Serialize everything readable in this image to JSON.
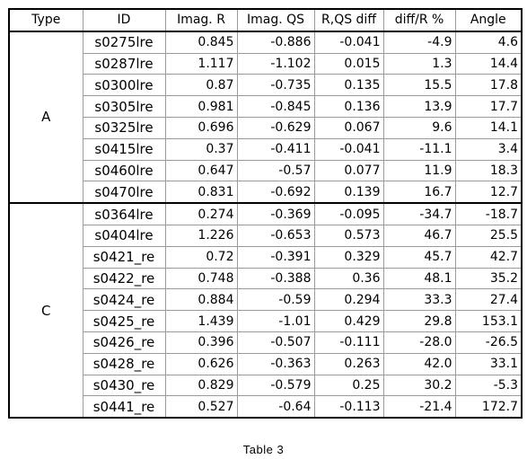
{
  "table": {
    "headers": [
      "Type",
      "ID",
      "Imag. R",
      "Imag. QS",
      "R,QS diff",
      "diff/R %",
      "Angle"
    ],
    "groups": [
      {
        "type": "A",
        "rows": [
          [
            "s0275lre",
            "0.845",
            "-0.886",
            "-0.041",
            "-4.9",
            "4.6"
          ],
          [
            "s0287lre",
            "1.117",
            "-1.102",
            "0.015",
            "1.3",
            "14.4"
          ],
          [
            "s0300lre",
            "0.87",
            "-0.735",
            "0.135",
            "15.5",
            "17.8"
          ],
          [
            "s0305lre",
            "0.981",
            "-0.845",
            "0.136",
            "13.9",
            "17.7"
          ],
          [
            "s0325lre",
            "0.696",
            "-0.629",
            "0.067",
            "9.6",
            "14.1"
          ],
          [
            "s0415lre",
            "0.37",
            "-0.411",
            "-0.041",
            "-11.1",
            "3.4"
          ],
          [
            "s0460lre",
            "0.647",
            "-0.57",
            "0.077",
            "11.9",
            "18.3"
          ],
          [
            "s0470lre",
            "0.831",
            "-0.692",
            "0.139",
            "16.7",
            "12.7"
          ]
        ]
      },
      {
        "type": "C",
        "rows": [
          [
            "s0364lre",
            "0.274",
            "-0.369",
            "-0.095",
            "-34.7",
            "-18.7"
          ],
          [
            "s0404lre",
            "1.226",
            "-0.653",
            "0.573",
            "46.7",
            "25.5"
          ],
          [
            "s0421_re",
            "0.72",
            "-0.391",
            "0.329",
            "45.7",
            "42.7"
          ],
          [
            "s0422_re",
            "0.748",
            "-0.388",
            "0.36",
            "48.1",
            "35.2"
          ],
          [
            "s0424_re",
            "0.884",
            "-0.59",
            "0.294",
            "33.3",
            "27.4"
          ],
          [
            "s0425_re",
            "1.439",
            "-1.01",
            "0.429",
            "29.8",
            "153.1"
          ],
          [
            "s0426_re",
            "0.396",
            "-0.507",
            "-0.111",
            "-28.0",
            "-26.5"
          ],
          [
            "s0428_re",
            "0.626",
            "-0.363",
            "0.263",
            "42.0",
            "33.1"
          ],
          [
            "s0430_re",
            "0.829",
            "-0.579",
            "0.25",
            "30.2",
            "-5.3"
          ],
          [
            "s0441_re",
            "0.527",
            "-0.64",
            "-0.113",
            "-21.4",
            "172.7"
          ]
        ]
      }
    ]
  },
  "caption": "Table 3"
}
